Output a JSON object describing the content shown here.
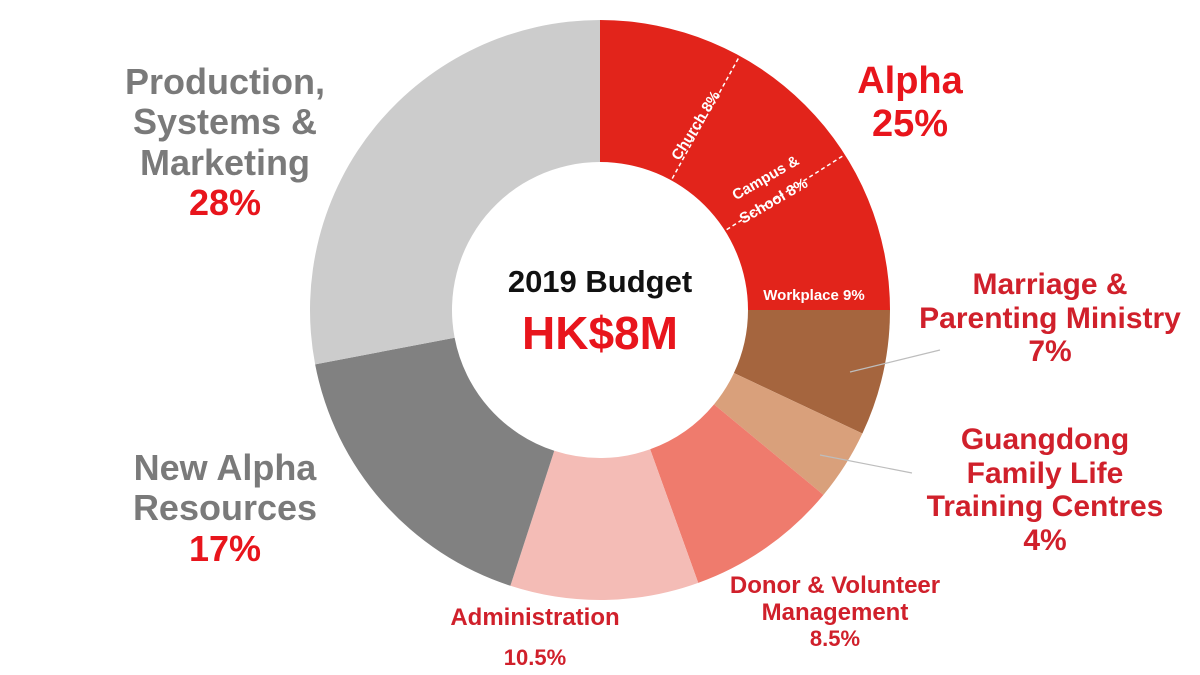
{
  "chart_data": {
    "type": "donut",
    "center": {
      "title": "2019 Budget",
      "value": "HK$8M"
    },
    "slices": [
      {
        "key": "alpha",
        "label": "Alpha",
        "pct_label": "25%",
        "value": 25,
        "color": "#e2241b",
        "sub_segments": [
          {
            "label": "Church 8%",
            "value": 8
          },
          {
            "label": "Campus & School 8%",
            "value": 8
          },
          {
            "label": "Workplace 9%",
            "value": 9
          }
        ]
      },
      {
        "key": "marriage",
        "label": "Marriage & Parenting Ministry",
        "pct_label": "7%",
        "value": 7,
        "color": "#a5653e"
      },
      {
        "key": "guangdong",
        "label": "Guangdong Family Life Training Centres",
        "pct_label": "4%",
        "value": 4,
        "color": "#d9a07b"
      },
      {
        "key": "donor",
        "label": "Donor & Volunteer Management",
        "pct_label": "8.5%",
        "value": 8.5,
        "color": "#ef7b6d"
      },
      {
        "key": "admin",
        "label": "Administration",
        "pct_label": "10.5%",
        "value": 10.5,
        "color": "#f4bcb6"
      },
      {
        "key": "resources",
        "label": "New Alpha Resources",
        "pct_label": "17%",
        "value": 17,
        "color": "#818181"
      },
      {
        "key": "production",
        "label": "Production, Systems & Marketing",
        "pct_label": "28%",
        "value": 28,
        "color": "#cccccc"
      }
    ]
  },
  "labels": {
    "alpha_name": "Alpha",
    "alpha_pct": "25%",
    "alpha_sub_church": "Church 8%",
    "alpha_sub_campus_line1": "Campus &",
    "alpha_sub_campus_line2": "School  8%",
    "alpha_sub_workplace": "Workplace 9%",
    "marriage_line1": "Marriage &",
    "marriage_line2": "Parenting Ministry",
    "marriage_pct": "7%",
    "guangdong_line1": "Guangdong",
    "guangdong_line2": "Family Life",
    "guangdong_line3": "Training Centres",
    "guangdong_pct": "4%",
    "donor_line1": "Donor & Volunteer",
    "donor_line2": "Management",
    "donor_pct": "8.5%",
    "admin_name": "Administration",
    "admin_pct": "10.5%",
    "resources_line1": "New Alpha",
    "resources_line2": "Resources",
    "resources_pct": "17%",
    "production_line1": "Production,",
    "production_line2": "Systems &",
    "production_line3": "Marketing",
    "production_pct": "28%"
  }
}
